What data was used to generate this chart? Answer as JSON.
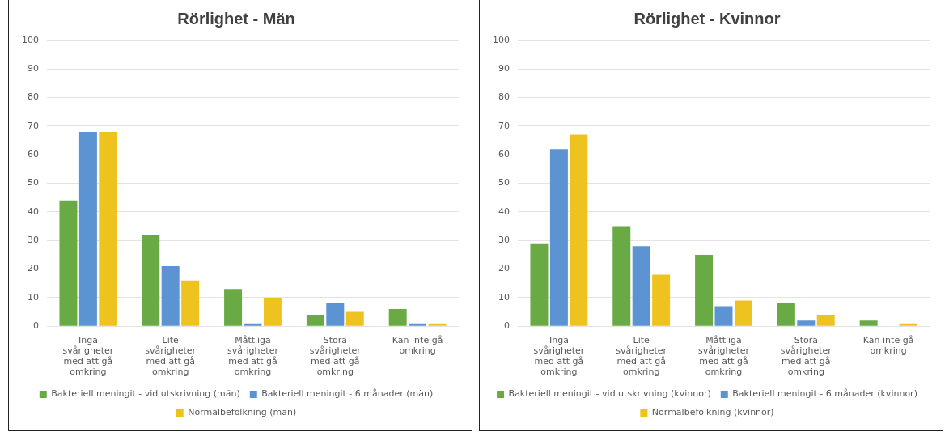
{
  "chart_data": [
    {
      "type": "bar",
      "title": "Rörlighet - Män",
      "categories": [
        "Inga svårigheter med att gå omkring",
        "Lite svårigheter med att gå omkring",
        "Måttliga svårigheter med att gå omkring",
        "Stora svårigheter med att gå omkring",
        "Kan inte gå omkring"
      ],
      "series": [
        {
          "name": "Bakteriell meningit - vid utskrivning (män)",
          "color": "#6aaa44",
          "values": [
            44,
            32,
            13,
            4,
            6
          ]
        },
        {
          "name": "Bakteriell meningit - 6 månader (män)",
          "color": "#5b93d3",
          "values": [
            68,
            21,
            1,
            8,
            1
          ]
        },
        {
          "name": "Normalbefolkning (män)",
          "color": "#eec320",
          "values": [
            68,
            16,
            10,
            5,
            1
          ]
        }
      ],
      "ylim": [
        0,
        100
      ],
      "yticks": [
        0,
        10,
        20,
        30,
        40,
        50,
        60,
        70,
        80,
        90,
        100
      ],
      "grid": "y",
      "legend": "bottom"
    },
    {
      "type": "bar",
      "title": "Rörlighet - Kvinnor",
      "categories": [
        "Inga svårigheter med att gå omkring",
        "Lite svårigheter med att gå omkring",
        "Måttliga svårigheter med att gå omkring",
        "Stora svårigheter med att gå omkring",
        "Kan inte gå omkring"
      ],
      "series": [
        {
          "name": "Bakteriell meningit - vid utskrivning (kvinnor)",
          "color": "#6aaa44",
          "values": [
            29,
            35,
            25,
            8,
            2
          ]
        },
        {
          "name": "Bakteriell meningit - 6 månader (kvinnor)",
          "color": "#5b93d3",
          "values": [
            62,
            28,
            7,
            2,
            0
          ]
        },
        {
          "name": "Normalbefolkning (kvinnor)",
          "color": "#eec320",
          "values": [
            67,
            18,
            9,
            4,
            1
          ]
        }
      ],
      "ylim": [
        0,
        100
      ],
      "yticks": [
        0,
        10,
        20,
        30,
        40,
        50,
        60,
        70,
        80,
        90,
        100
      ],
      "grid": "y",
      "legend": "bottom"
    }
  ]
}
